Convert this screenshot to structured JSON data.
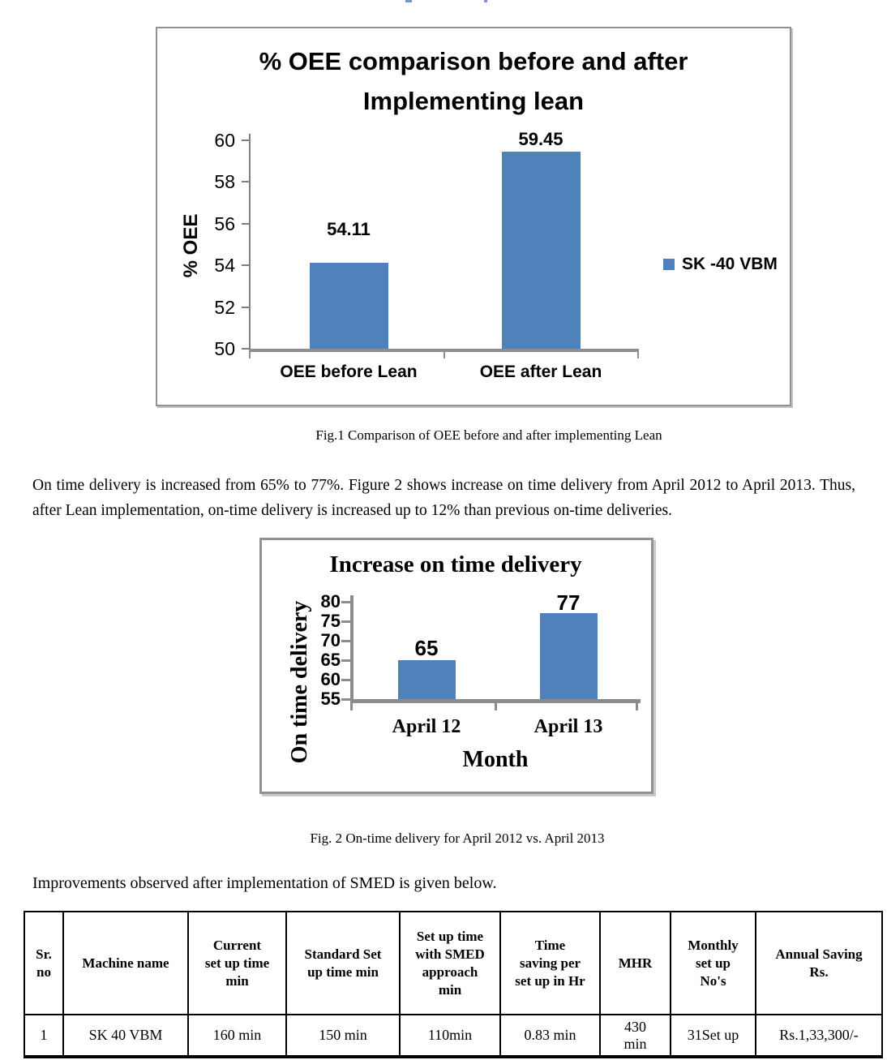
{
  "page": {
    "fig1_caption": "Fig.1 Comparison of OEE before and after implementing Lean",
    "paragraph": "On time delivery is increased from 65% to 77%. Figure 2 shows increase on time delivery from April 2012 to April 2013. Thus, after Lean implementation, on-time delivery is increased up to 12% than previous on-time deliveries.",
    "fig2_caption": "Fig. 2 On-time delivery for April 2012 vs. April 2013",
    "improvements_line": "Improvements observed after implementation of SMED is given below.",
    "artifact_color": "#8095cc"
  },
  "chart_data": [
    {
      "type": "bar",
      "title": "% OEE comparison before and after Implementing lean",
      "categories": [
        "OEE before Lean",
        "OEE after Lean"
      ],
      "series": [
        {
          "name": "SK -40 VBM",
          "values": [
            54.11,
            59.45
          ]
        }
      ],
      "data_labels": [
        "54.11",
        "59.45"
      ],
      "xlabel": "",
      "ylabel": "% OEE",
      "ylim": [
        50,
        60
      ],
      "yticks": [
        50,
        52,
        54,
        56,
        58,
        60
      ],
      "grid": false,
      "legend": {
        "position": "right",
        "entries": [
          "SK -40 VBM"
        ]
      },
      "bar_color": "#4F81BD"
    },
    {
      "type": "bar",
      "title": "Increase on time delivery",
      "categories": [
        "April 12",
        "April 13"
      ],
      "series": [
        {
          "name": "On time delivery",
          "values": [
            65,
            77
          ]
        }
      ],
      "data_labels": [
        "65",
        "77"
      ],
      "xlabel": "Month",
      "ylabel": "On time delivery",
      "ylim": [
        55,
        80
      ],
      "yticks": [
        55,
        60,
        65,
        70,
        75,
        80
      ],
      "grid": false,
      "legend": {
        "position": "none",
        "entries": []
      },
      "bar_color": "#4F81BD"
    }
  ],
  "table": {
    "headers": [
      "Sr.\nno",
      "Machine name",
      "Current\nset up time\nmin",
      "Standard  Set\nup time min",
      "Set up time\nwith SMED\napproach\nmin",
      "Time\nsaving per\nset up in Hr",
      "MHR",
      "Monthly\nset up\nNo's",
      "Annual Saving\nRs."
    ],
    "rows": [
      [
        "1",
        "SK 40  VBM",
        "160 min",
        "150 min",
        "110min",
        "0.83 min",
        "430\nmin",
        "31Set up",
        "Rs.1,33,300/-"
      ]
    ]
  }
}
